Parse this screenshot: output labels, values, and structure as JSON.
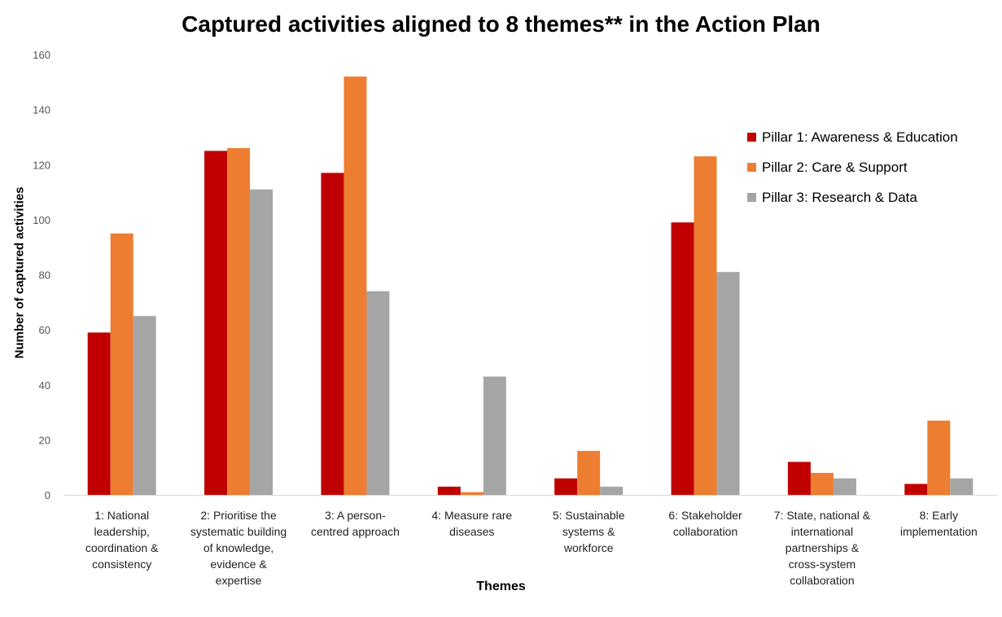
{
  "chart_data": {
    "type": "bar",
    "title": "Captured activities aligned to 8 themes** in the Action Plan",
    "xlabel": "Themes",
    "ylabel": "Number of captured activities",
    "ylim": [
      0,
      160
    ],
    "yticks": [
      0,
      20,
      40,
      60,
      80,
      100,
      120,
      140,
      160
    ],
    "grid": false,
    "legend_position": "top-right",
    "categories": [
      [
        "1: National",
        "leadership,",
        "coordination &",
        "consistency"
      ],
      [
        "2: Prioritise the",
        "systematic building",
        "of knowledge,",
        "evidence &",
        "expertise"
      ],
      [
        "3: A person-",
        "centred approach"
      ],
      [
        "4: Measure rare",
        "diseases"
      ],
      [
        "5: Sustainable",
        "systems &",
        "workforce"
      ],
      [
        "6: Stakeholder",
        "collaboration"
      ],
      [
        "7: State, national &",
        "international",
        "partnerships &",
        "cross-system",
        "collaboration"
      ],
      [
        "8: Early",
        "implementation"
      ]
    ],
    "series": [
      {
        "name": "Pillar 1: Awareness & Education",
        "color": "#c00000",
        "values": [
          59,
          125,
          117,
          3,
          6,
          99,
          12,
          4
        ]
      },
      {
        "name": "Pillar 2: Care & Support",
        "color": "#ed7d31",
        "values": [
          95,
          126,
          152,
          1,
          16,
          123,
          8,
          27
        ]
      },
      {
        "name": "Pillar 3: Research & Data",
        "color": "#a5a5a5",
        "values": [
          65,
          111,
          74,
          43,
          3,
          81,
          6,
          6
        ]
      }
    ]
  }
}
